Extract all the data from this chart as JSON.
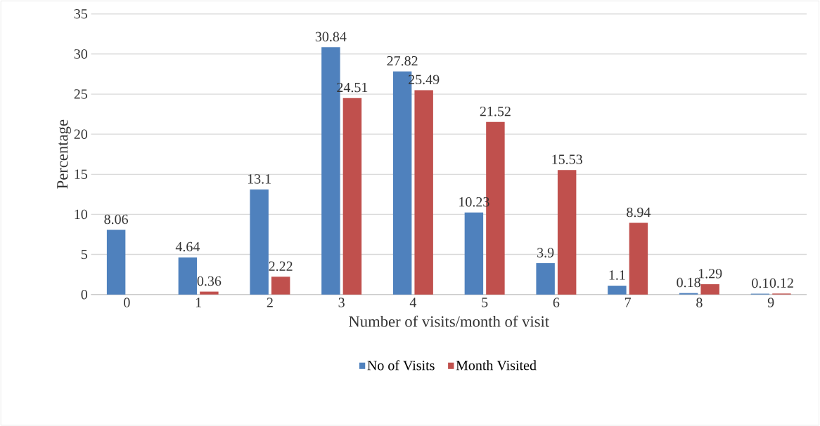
{
  "chart_data": {
    "type": "bar",
    "xlabel": "Number of visits/month of visit",
    "ylabel": "Percentage",
    "categories": [
      "0",
      "1",
      "2",
      "3",
      "4",
      "5",
      "6",
      "7",
      "8",
      "9"
    ],
    "series": [
      {
        "name": "No of Visits",
        "color": "#4f81bd",
        "values": [
          8.06,
          4.64,
          13.1,
          30.84,
          27.82,
          10.23,
          3.9,
          1.1,
          0.18,
          0.1
        ]
      },
      {
        "name": "Month Visited",
        "color": "#c0504d",
        "values": [
          null,
          0.36,
          2.22,
          24.51,
          25.49,
          21.52,
          15.53,
          8.94,
          1.29,
          0.12
        ]
      }
    ],
    "ylim": [
      0,
      35
    ],
    "yticks": [
      0,
      5,
      10,
      15,
      20,
      25,
      30,
      35
    ],
    "grid": "y",
    "legend": "bottom",
    "data_labels": true
  }
}
